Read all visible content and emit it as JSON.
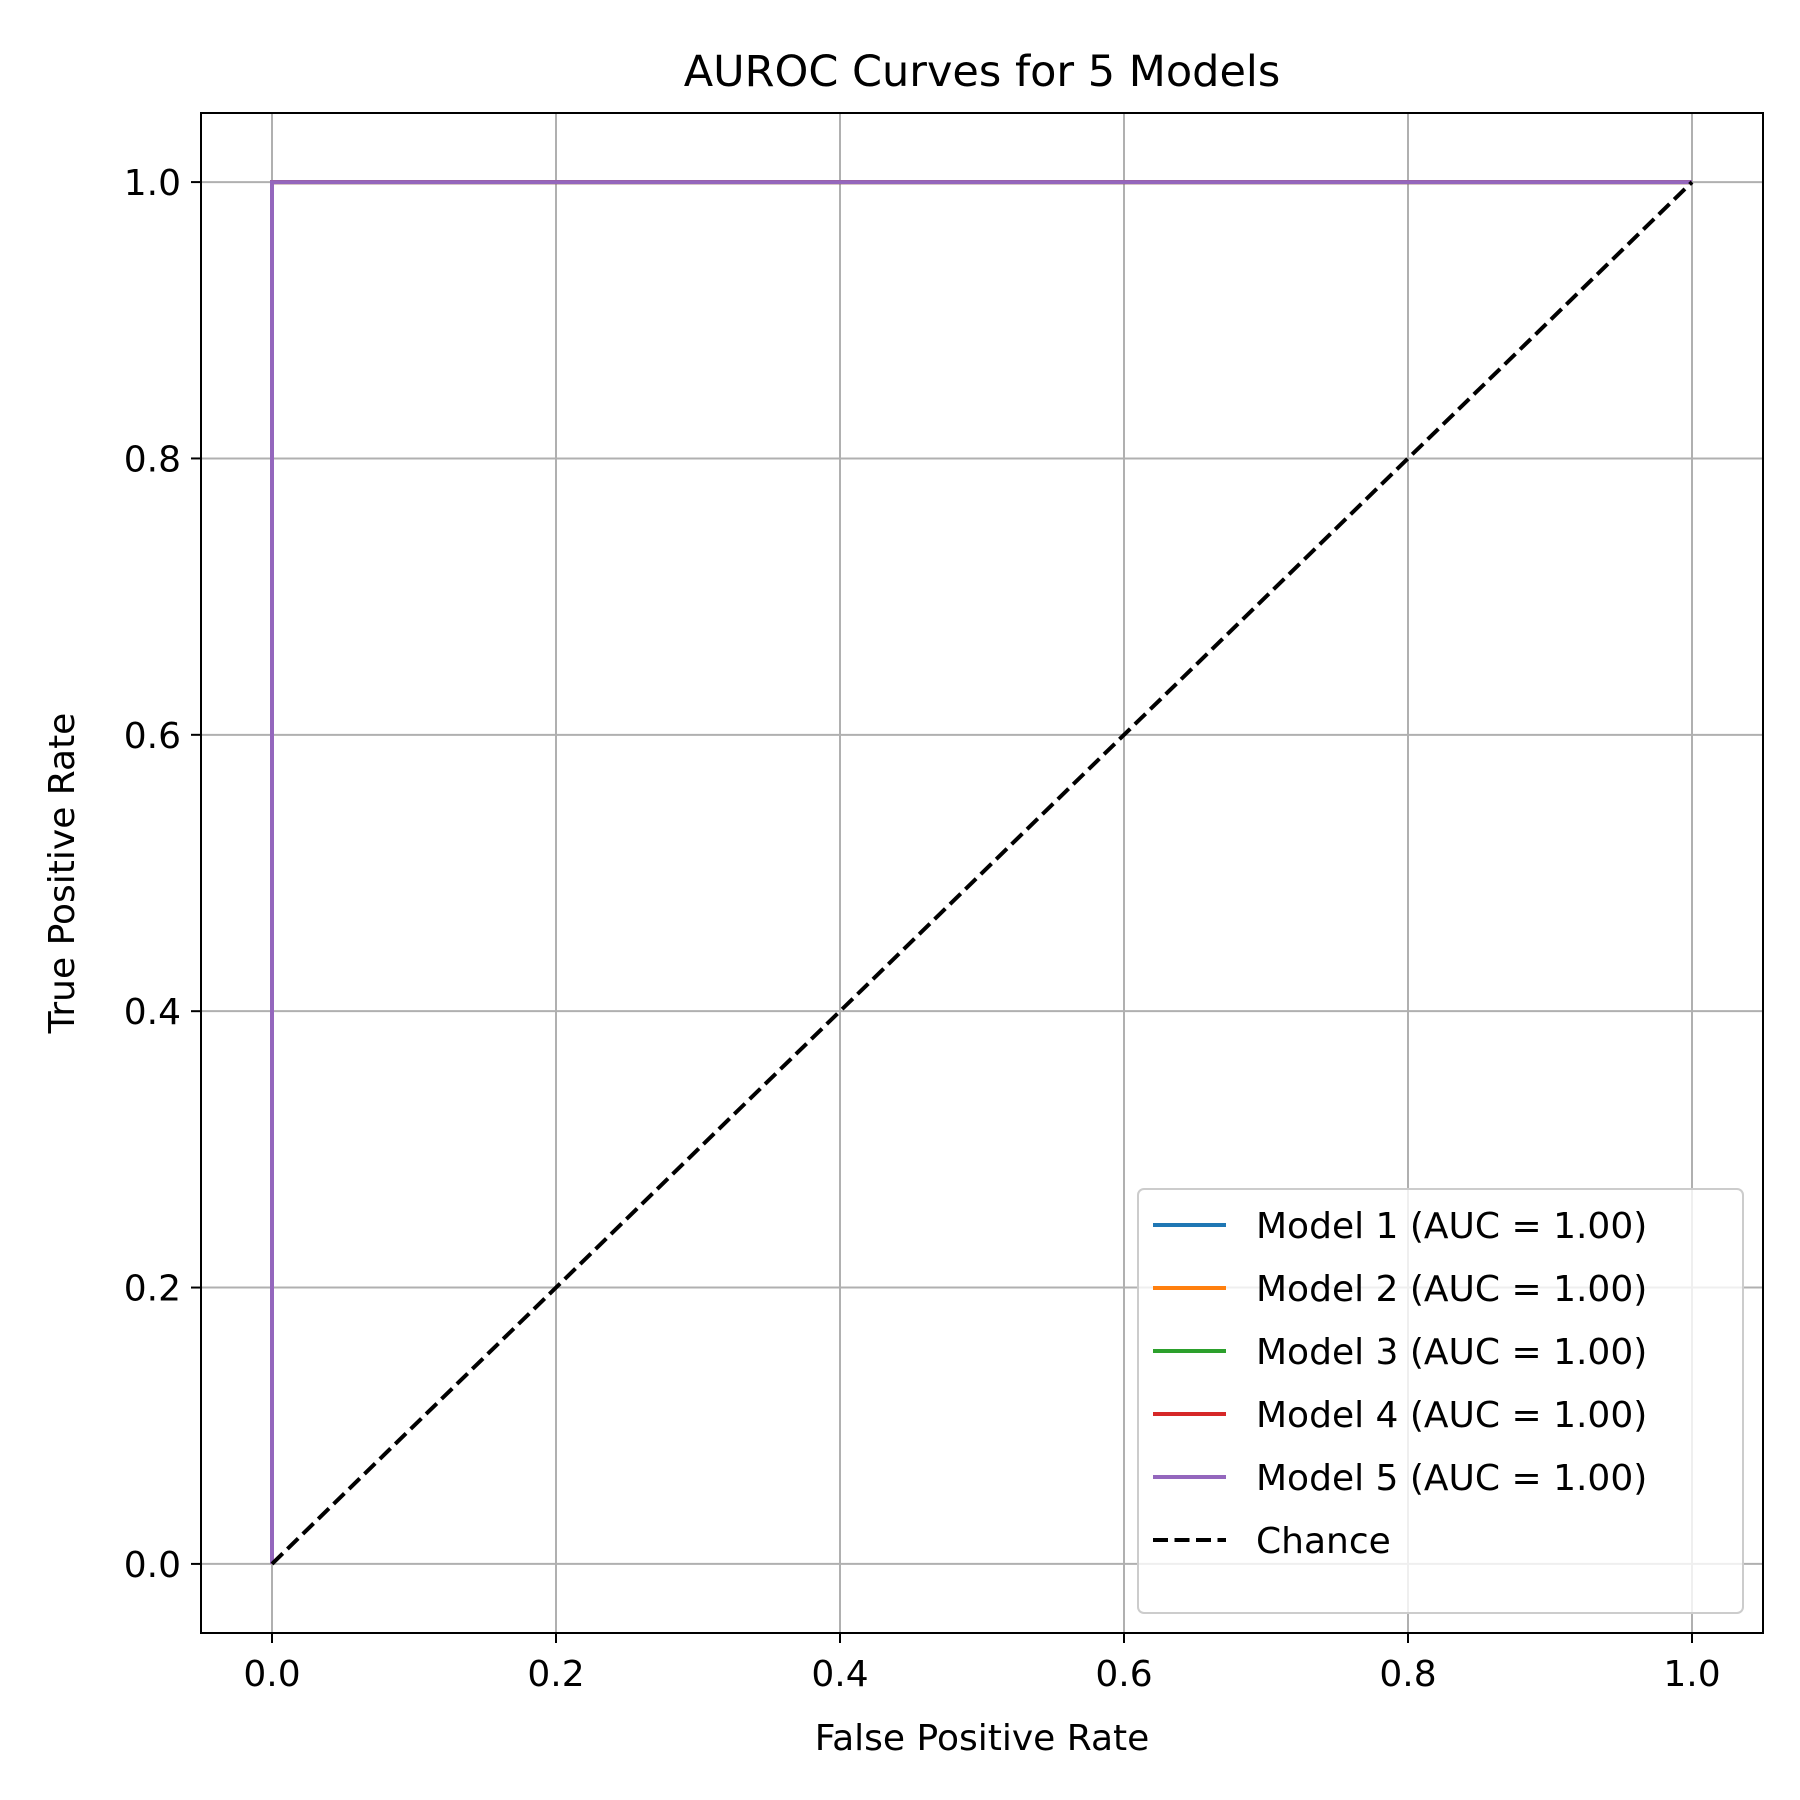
{
  "chart_data": {
    "type": "line",
    "title": "AUROC Curves for 5 Models",
    "xlabel": "False Positive Rate",
    "ylabel": "True Positive Rate",
    "xlim": [
      -0.05,
      1.05
    ],
    "ylim": [
      -0.05,
      1.05
    ],
    "x_ticks": [
      0.0,
      0.2,
      0.4,
      0.6,
      0.8,
      1.0
    ],
    "y_ticks": [
      0.0,
      0.2,
      0.4,
      0.6,
      0.8,
      1.0
    ],
    "x_tick_labels": [
      "0.0",
      "0.2",
      "0.4",
      "0.6",
      "0.8",
      "1.0"
    ],
    "y_tick_labels": [
      "0.0",
      "0.2",
      "0.4",
      "0.6",
      "0.8",
      "1.0"
    ],
    "grid": true,
    "legend_position": "lower-right",
    "series": [
      {
        "name": "Model 1 (AUC = 1.00)",
        "color": "#1f77b4",
        "dash": "solid",
        "x": [
          0.0,
          0.0,
          1.0
        ],
        "y": [
          0.0,
          1.0,
          1.0
        ]
      },
      {
        "name": "Model 2 (AUC = 1.00)",
        "color": "#ff7f0e",
        "dash": "solid",
        "x": [
          0.0,
          0.0,
          1.0
        ],
        "y": [
          0.0,
          1.0,
          1.0
        ]
      },
      {
        "name": "Model 3 (AUC = 1.00)",
        "color": "#2ca02c",
        "dash": "solid",
        "x": [
          0.0,
          0.0,
          1.0
        ],
        "y": [
          0.0,
          1.0,
          1.0
        ]
      },
      {
        "name": "Model 4 (AUC = 1.00)",
        "color": "#d62728",
        "dash": "solid",
        "x": [
          0.0,
          0.0,
          1.0
        ],
        "y": [
          0.0,
          1.0,
          1.0
        ]
      },
      {
        "name": "Model 5 (AUC = 1.00)",
        "color": "#9467bd",
        "dash": "solid",
        "x": [
          0.0,
          0.0,
          1.0
        ],
        "y": [
          0.0,
          1.0,
          1.0
        ]
      },
      {
        "name": "Chance",
        "color": "#000000",
        "dash": "dashed",
        "x": [
          0.0,
          1.0
        ],
        "y": [
          0.0,
          1.0
        ]
      }
    ]
  }
}
